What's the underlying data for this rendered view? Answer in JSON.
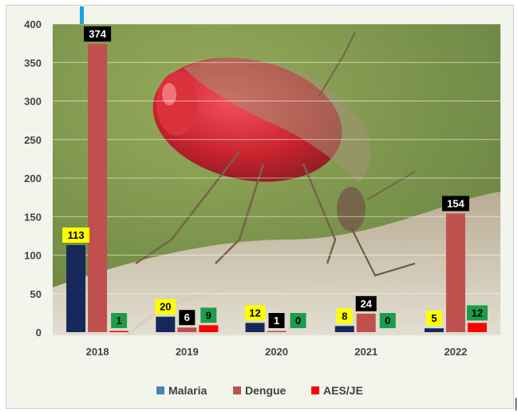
{
  "chart_data": {
    "type": "bar",
    "categories": [
      "2018",
      "2019",
      "2020",
      "2021",
      "2022"
    ],
    "series": [
      {
        "name": "Malaria",
        "color": "#4f81bd",
        "bar_color": "#16285a",
        "label_bg": "#ffff00",
        "label_fg": "#000000",
        "values": [
          113,
          20,
          12,
          8,
          5
        ]
      },
      {
        "name": "Dengue",
        "color": "#c0504d",
        "bar_color": "#c0504d",
        "label_bg": "#000000",
        "label_fg": "#ffffff",
        "values": [
          374,
          6,
          1,
          24,
          154
        ]
      },
      {
        "name": "AES/JE",
        "color": "#ff0000",
        "bar_color": "#ff0000",
        "label_bg": "#1a9e4a",
        "label_fg": "#000000",
        "values": [
          1,
          9,
          0,
          0,
          12
        ]
      }
    ],
    "yticks": [
      0,
      50,
      100,
      150,
      200,
      250,
      300,
      350,
      400
    ],
    "ylim": [
      0,
      400
    ],
    "grid": true,
    "legend_position": "bottom",
    "title": "",
    "xlabel": "",
    "ylabel": ""
  }
}
